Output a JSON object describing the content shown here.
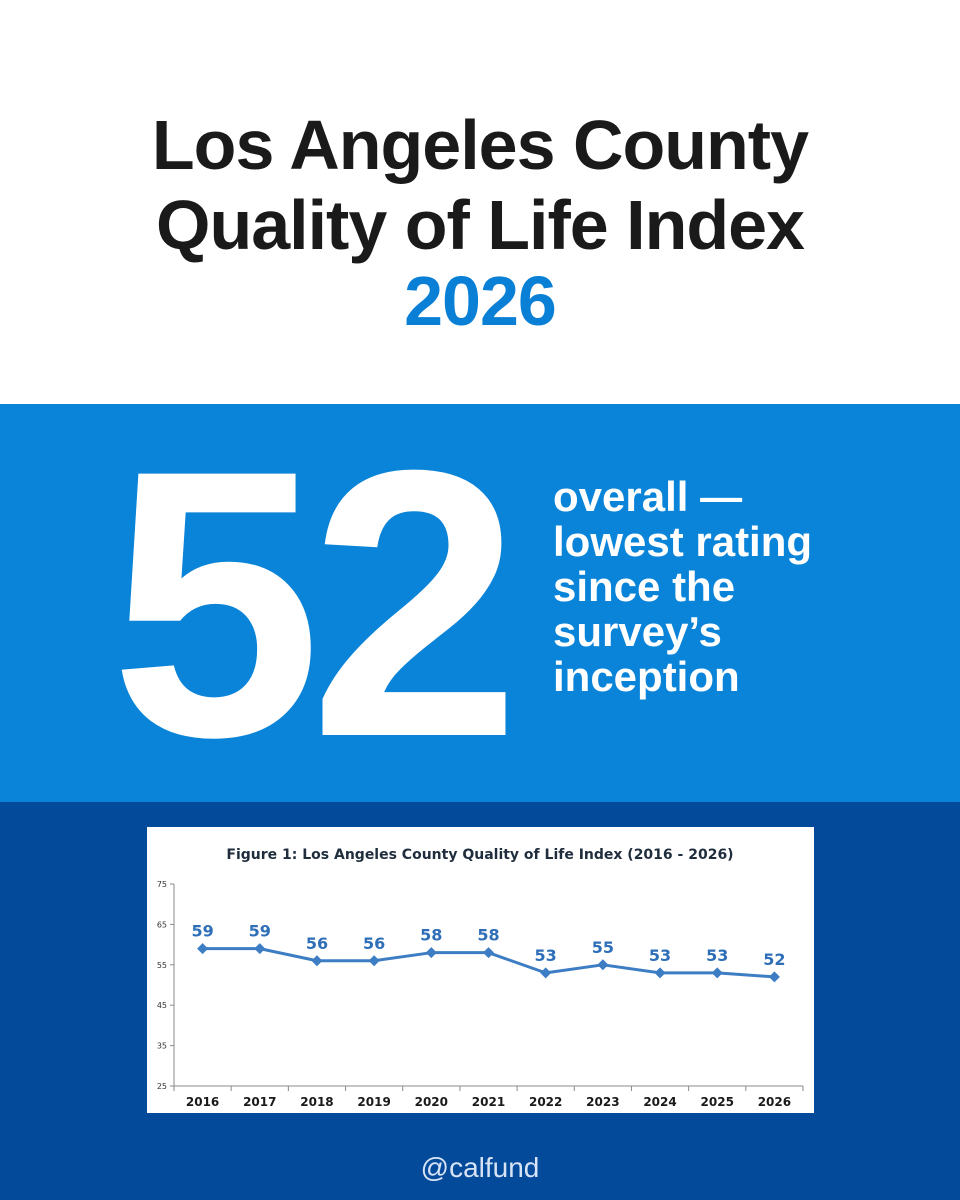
{
  "header": {
    "title_line1": "Los Angeles County",
    "title_line2": "Quality of Life Index",
    "year": "2026"
  },
  "stat": {
    "value": "52",
    "caption_lines": [
      "overall —",
      "lowest rating",
      "since the",
      "survey’s",
      "inception"
    ]
  },
  "chart_data": {
    "type": "line",
    "title": "Figure 1: Los Angeles County Quality of Life Index (2016 - 2026)",
    "xlabel": "",
    "ylabel": "",
    "categories": [
      "2016",
      "2017",
      "2018",
      "2019",
      "2020",
      "2021",
      "2022",
      "2023",
      "2024",
      "2025",
      "2026"
    ],
    "values": [
      59,
      59,
      56,
      56,
      58,
      58,
      53,
      55,
      53,
      53,
      52
    ],
    "ylim": [
      25,
      75
    ],
    "yticks": [
      25,
      35,
      45,
      55,
      65,
      75
    ],
    "grid": false,
    "legend": "none",
    "color": "#3d7dc4",
    "data_label_color": "#2f6fb8"
  },
  "footer": {
    "handle": "@calfund"
  },
  "colors": {
    "title_text": "#1a1a1a",
    "accent_blue": "#0a7fd6",
    "stat_band": "#0a84d8",
    "dark_band": "#034a9a"
  }
}
